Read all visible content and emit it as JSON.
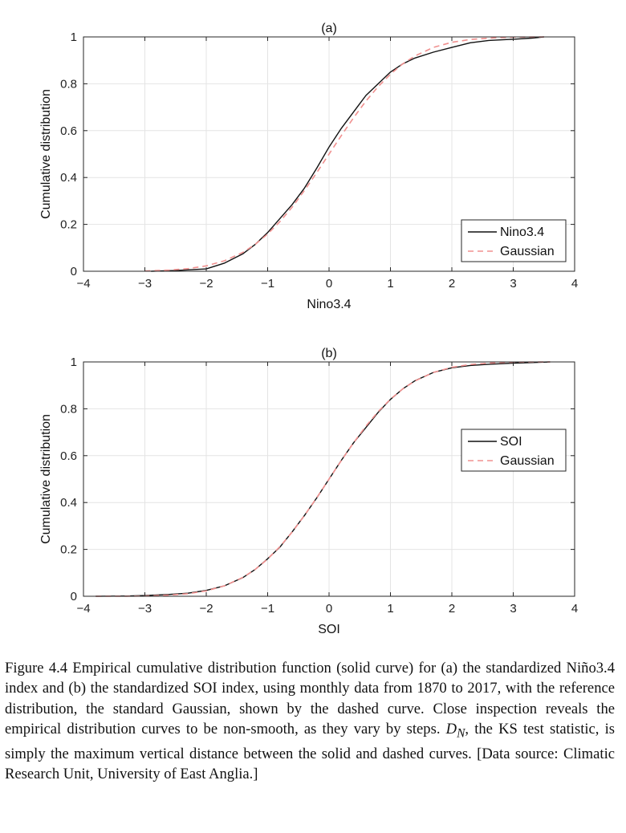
{
  "chart_data": [
    {
      "type": "line",
      "title": "(a)",
      "xlabel": "Nino3.4",
      "ylabel": "Cumulative distribution",
      "xlim": [
        -4,
        4
      ],
      "ylim": [
        0,
        1
      ],
      "xticks": [
        -4,
        -3,
        -2,
        -1,
        0,
        1,
        2,
        3,
        4
      ],
      "xtick_labels": [
        "−4",
        "−3",
        "−2",
        "−1",
        "0",
        "1",
        "2",
        "3",
        "4"
      ],
      "yticks": [
        0,
        0.2,
        0.4,
        0.6,
        0.8,
        1
      ],
      "ytick_labels": [
        "0",
        "0.2",
        "0.4",
        "0.6",
        "0.8",
        "1"
      ],
      "grid": true,
      "legend_position": "bottom-right",
      "series": [
        {
          "name": "Nino3.4",
          "style": "solid",
          "color": "#111111",
          "x": [
            -2.9,
            -2.5,
            -2.0,
            -1.7,
            -1.4,
            -1.2,
            -1.0,
            -0.8,
            -0.6,
            -0.4,
            -0.2,
            0.0,
            0.2,
            0.4,
            0.6,
            0.8,
            1.0,
            1.2,
            1.4,
            1.7,
            2.0,
            2.3,
            2.6,
            3.0,
            3.3,
            3.5
          ],
          "y": [
            0.0,
            0.003,
            0.01,
            0.035,
            0.075,
            0.115,
            0.165,
            0.225,
            0.285,
            0.355,
            0.44,
            0.53,
            0.61,
            0.68,
            0.75,
            0.8,
            0.85,
            0.885,
            0.91,
            0.935,
            0.955,
            0.975,
            0.985,
            0.99,
            0.995,
            1.0
          ]
        },
        {
          "name": "Gaussian",
          "style": "dashed",
          "color": "#f0908f",
          "x": [
            -3.0,
            -2.6,
            -2.3,
            -2.0,
            -1.7,
            -1.4,
            -1.2,
            -1.0,
            -0.8,
            -0.6,
            -0.4,
            -0.2,
            0.0,
            0.2,
            0.4,
            0.6,
            0.8,
            1.0,
            1.2,
            1.4,
            1.7,
            2.0,
            2.3,
            2.6,
            3.0,
            3.5
          ],
          "y": [
            0.001,
            0.005,
            0.011,
            0.023,
            0.045,
            0.081,
            0.115,
            0.159,
            0.212,
            0.274,
            0.345,
            0.421,
            0.5,
            0.579,
            0.655,
            0.726,
            0.788,
            0.841,
            0.885,
            0.919,
            0.955,
            0.977,
            0.989,
            0.995,
            0.999,
            1.0
          ]
        }
      ]
    },
    {
      "type": "line",
      "title": "(b)",
      "xlabel": "SOI",
      "ylabel": "Cumulative distribution",
      "xlim": [
        -4,
        4
      ],
      "ylim": [
        0,
        1
      ],
      "xticks": [
        -4,
        -3,
        -2,
        -1,
        0,
        1,
        2,
        3,
        4
      ],
      "xtick_labels": [
        "−4",
        "−3",
        "−2",
        "−1",
        "0",
        "1",
        "2",
        "3",
        "4"
      ],
      "yticks": [
        0,
        0.2,
        0.4,
        0.6,
        0.8,
        1
      ],
      "ytick_labels": [
        "0",
        "0.2",
        "0.4",
        "0.6",
        "0.8",
        "1"
      ],
      "grid": true,
      "legend_position": "middle-right",
      "series": [
        {
          "name": "SOI",
          "style": "solid",
          "color": "#111111",
          "x": [
            -3.8,
            -3.3,
            -3.0,
            -2.6,
            -2.3,
            -2.0,
            -1.7,
            -1.4,
            -1.2,
            -1.0,
            -0.8,
            -0.6,
            -0.4,
            -0.2,
            0.0,
            0.2,
            0.4,
            0.6,
            0.8,
            1.0,
            1.2,
            1.4,
            1.7,
            2.0,
            2.3,
            2.6,
            3.0,
            3.6
          ],
          "y": [
            0.0,
            0.001,
            0.003,
            0.008,
            0.013,
            0.025,
            0.045,
            0.08,
            0.115,
            0.16,
            0.21,
            0.275,
            0.345,
            0.42,
            0.5,
            0.58,
            0.655,
            0.72,
            0.785,
            0.84,
            0.885,
            0.92,
            0.955,
            0.975,
            0.985,
            0.99,
            0.995,
            1.0
          ]
        },
        {
          "name": "Gaussian",
          "style": "dashed",
          "color": "#f0908f",
          "x": [
            -3.8,
            -3.3,
            -3.0,
            -2.6,
            -2.3,
            -2.0,
            -1.7,
            -1.4,
            -1.2,
            -1.0,
            -0.8,
            -0.6,
            -0.4,
            -0.2,
            0.0,
            0.2,
            0.4,
            0.6,
            0.8,
            1.0,
            1.2,
            1.4,
            1.7,
            2.0,
            2.3,
            2.6,
            3.0,
            3.6
          ],
          "y": [
            0.0,
            0.0005,
            0.001,
            0.005,
            0.011,
            0.023,
            0.045,
            0.081,
            0.115,
            0.159,
            0.212,
            0.274,
            0.345,
            0.421,
            0.5,
            0.579,
            0.655,
            0.726,
            0.788,
            0.841,
            0.885,
            0.919,
            0.955,
            0.977,
            0.989,
            0.995,
            0.999,
            1.0
          ]
        }
      ]
    }
  ],
  "caption": {
    "text_before_math": "Figure 4.4 Empirical cumulative distribution function (solid curve) for (a) the standardized Niño3.4 index and (b) the standardized SOI index, using monthly data from 1870 to 2017, with the reference distribution, the standard Gaussian, shown by the dashed curve. Close inspection reveals the empirical distribution curves to be non-smooth, as they vary by steps. ",
    "math_symbol": "D",
    "math_subscript": "N",
    "text_after_math": ", the KS test statistic, is simply the maximum vertical distance between the solid and dashed curves. [Data source: Climatic Research Unit, University of East Anglia.]"
  }
}
